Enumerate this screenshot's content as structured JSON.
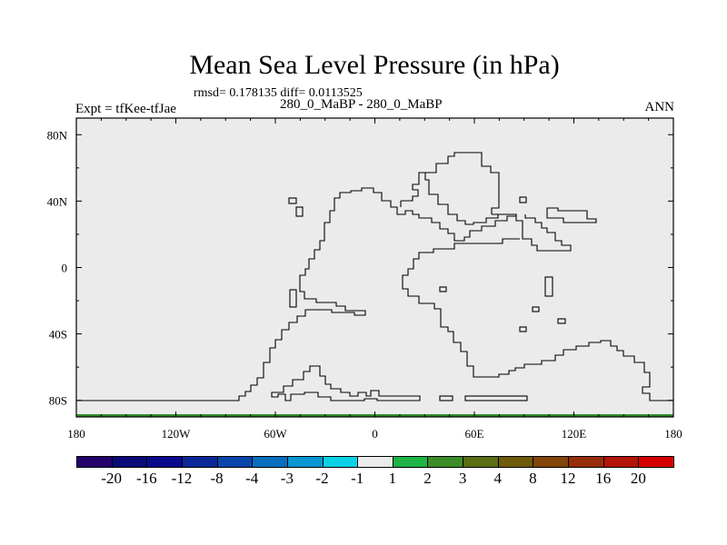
{
  "title": "Mean Sea Level Pressure (in hPa)",
  "stats": "rmsd= 0.178135 diff= 0.0113525",
  "subtitle": "280_0_MaBP - 280_0_MaBP",
  "left_label": "Expt = tfKee-tfJae",
  "right_label": "ANN",
  "map": {
    "field_color": "#ebebeb",
    "coast_color": "#000000",
    "bottom_band_color": "#2e8b2e",
    "lon_ticks": [
      {
        "value": -180,
        "label": "180"
      },
      {
        "value": -120,
        "label": "120W"
      },
      {
        "value": -60,
        "label": "60W"
      },
      {
        "value": 0,
        "label": "0"
      },
      {
        "value": 60,
        "label": "60E"
      },
      {
        "value": 120,
        "label": "120E"
      },
      {
        "value": 180,
        "label": "180"
      }
    ],
    "lat_ticks": [
      {
        "value": 80,
        "label": "80N"
      },
      {
        "value": 40,
        "label": "40N"
      },
      {
        "value": 0,
        "label": "0"
      },
      {
        "value": -40,
        "label": "40S"
      },
      {
        "value": -80,
        "label": "80S"
      }
    ]
  },
  "colorbar": {
    "colors": [
      "#24046b",
      "#0a0a78",
      "#0a0a8c",
      "#0a2896",
      "#0a46aa",
      "#0a6ebe",
      "#0a96d2",
      "#0ad2e6",
      "#ebebeb",
      "#1eb446",
      "#3c8c28",
      "#5a6e14",
      "#6e5a0a",
      "#82460a",
      "#962d0a",
      "#b4140a",
      "#d20000"
    ],
    "labels": [
      "-20",
      "-16",
      "-12",
      "-8",
      "-4",
      "-3",
      "-2",
      "-1",
      "1",
      "2",
      "3",
      "4",
      "8",
      "12",
      "16",
      "20"
    ]
  }
}
